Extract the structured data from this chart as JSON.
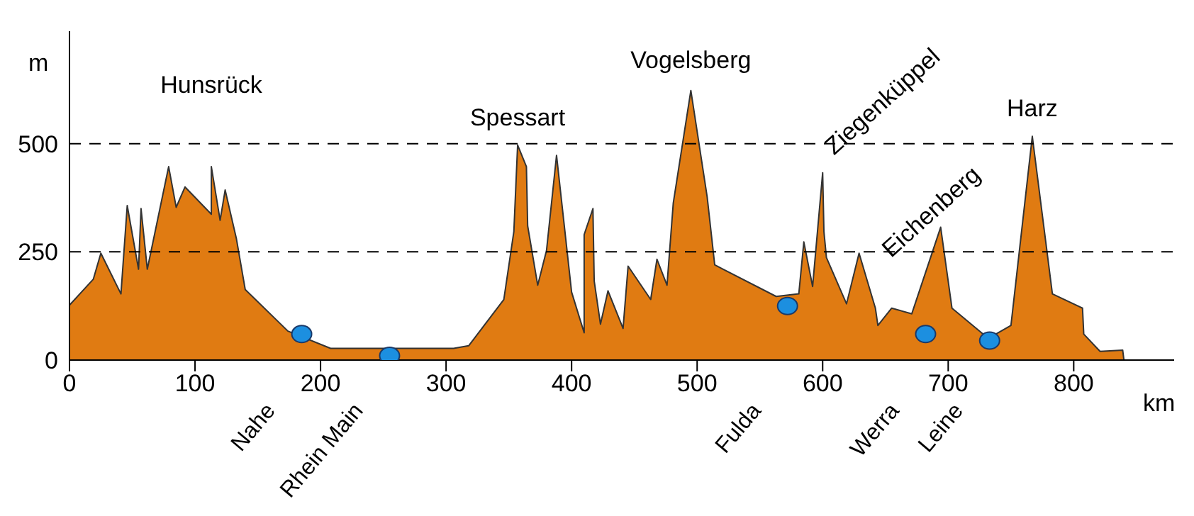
{
  "chart_data": {
    "type": "area",
    "xlabel": "km",
    "ylabel": "m",
    "x": [
      0,
      19,
      25,
      41,
      46,
      55,
      57,
      62,
      79,
      85,
      92,
      113,
      113,
      120,
      124,
      133,
      140,
      174,
      208,
      272,
      306,
      318,
      346,
      354,
      357,
      364,
      365,
      373,
      380,
      388,
      400,
      410,
      410,
      417,
      418,
      423,
      429,
      441,
      445,
      463,
      468,
      476,
      481,
      495,
      508,
      514,
      563,
      581,
      585,
      592,
      600,
      601,
      603,
      619,
      629,
      642,
      644,
      655,
      671,
      685,
      694,
      703,
      732,
      750,
      767,
      783,
      807,
      808,
      821,
      839,
      840
    ],
    "series": [
      {
        "color": "#e07b12",
        "values": [
          127,
          187,
          247,
          153,
          357,
          210,
          350,
          210,
          447,
          353,
          400,
          337,
          447,
          323,
          393,
          280,
          163,
          67,
          27,
          null,
          27,
          33,
          140,
          297,
          497,
          447,
          310,
          173,
          253,
          473,
          157,
          63,
          290,
          350,
          183,
          83,
          160,
          73,
          217,
          140,
          233,
          173,
          363,
          623,
          377,
          220,
          147,
          153,
          273,
          170,
          433,
          297,
          237,
          130,
          247,
          120,
          80,
          120,
          107,
          null,
          307,
          120,
          50,
          80,
          517,
          153,
          120,
          60,
          20,
          23,
          0
        ]
      },
      {
        "type": "scatter",
        "color": "#1c8fe0",
        "marker": "circle",
        "x": [
          185,
          255,
          572,
          682,
          733
        ],
        "values": [
          60,
          10,
          125,
          60,
          45
        ]
      }
    ],
    "xlim": [
      0,
      880
    ],
    "ylim": [
      0,
      760
    ],
    "xticks": [
      0,
      100,
      200,
      300,
      400,
      500,
      600,
      700,
      800
    ],
    "yticks": [
      0,
      250,
      500
    ],
    "ref_lines": [
      {
        "axis": "y",
        "value": 250,
        "color": "#000000",
        "line_style": "dashed"
      },
      {
        "axis": "y",
        "value": 500,
        "color": "#000000",
        "line_style": "dashed"
      }
    ],
    "annotations": [
      {
        "text": "Hunsrück",
        "x": 113,
        "y": 447
      },
      {
        "text": "Spessart",
        "x": 357,
        "y": 497
      },
      {
        "text": "Vogelsberg",
        "x": 495,
        "y": 623
      },
      {
        "text": "Ziegenküppel",
        "x": 600,
        "y": 433
      },
      {
        "text": "Eichenberg",
        "x": 694,
        "y": 307
      },
      {
        "text": "Harz",
        "x": 767,
        "y": 517
      },
      "Nahe",
      "Rhein Main",
      "Fulda",
      "Werra",
      "Leine"
    ]
  }
}
